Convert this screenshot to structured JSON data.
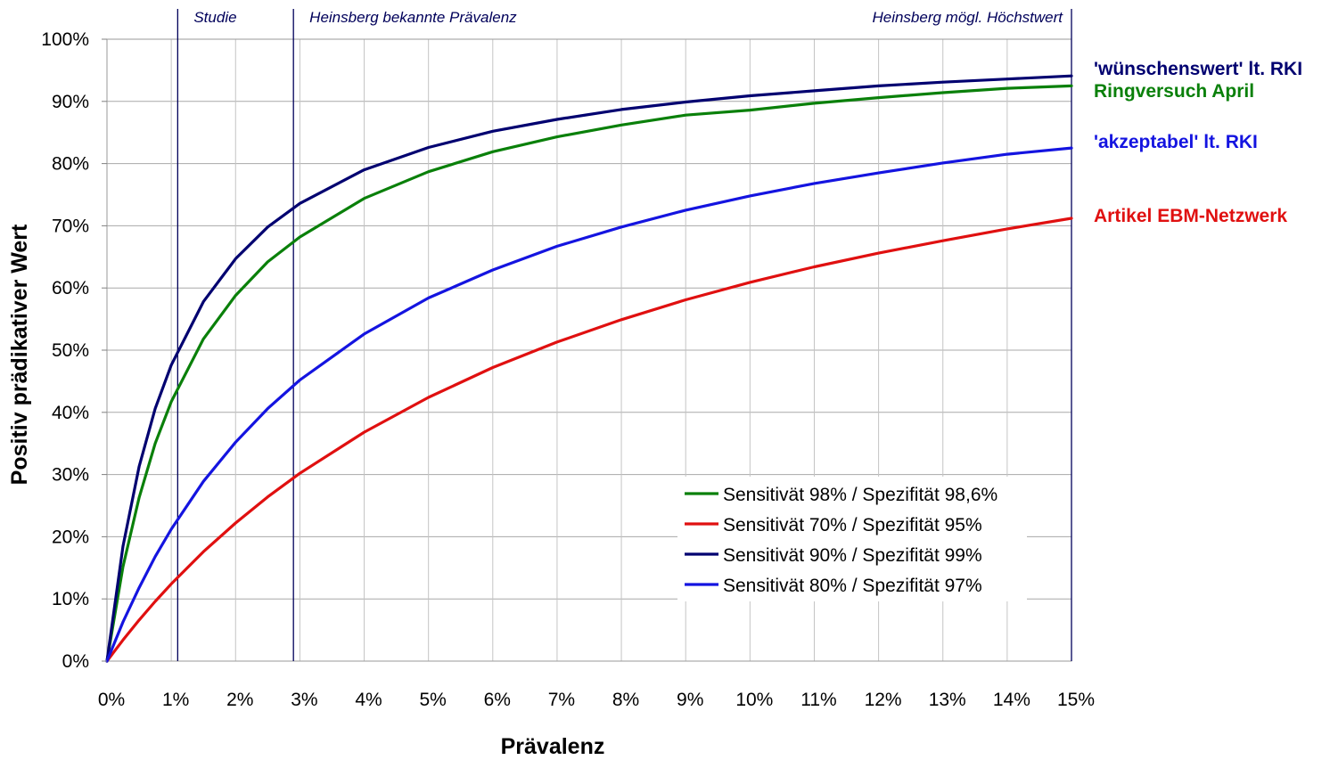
{
  "chart_data": {
    "type": "line",
    "title": "",
    "xlabel": "Prävalenz",
    "ylabel": "Positiv prädikativer Wert",
    "xlim": [
      0,
      15
    ],
    "ylim": [
      0,
      100
    ],
    "x_ticks": [
      "0%",
      "1%",
      "2%",
      "3%",
      "4%",
      "5%",
      "6%",
      "7%",
      "8%",
      "9%",
      "10%",
      "11%",
      "12%",
      "13%",
      "14%",
      "15%"
    ],
    "y_ticks": [
      "0%",
      "10%",
      "20%",
      "30%",
      "40%",
      "50%",
      "60%",
      "70%",
      "80%",
      "90%",
      "100%"
    ],
    "grid": true,
    "legend_position": "bottom-center",
    "x": [
      0,
      0.25,
      0.5,
      0.75,
      1,
      1.5,
      2,
      2.5,
      3,
      4,
      5,
      6,
      7,
      8,
      9,
      10,
      11,
      12,
      13,
      14,
      15
    ],
    "series": [
      {
        "name": "Sensitivät 98% / Spezifität 98,6%",
        "color": "#0a800a",
        "values": [
          0,
          15.2,
          26.3,
          35.0,
          41.7,
          51.8,
          58.8,
          64.2,
          68.2,
          74.4,
          78.7,
          81.9,
          84.3,
          86.2,
          87.8,
          88.6,
          89.7,
          90.6,
          91.4,
          92.1,
          92.5
        ]
      },
      {
        "name": "Sensitivät 70% / Spezifität 95%",
        "color": "#e01010",
        "values": [
          0,
          3.4,
          6.6,
          9.6,
          12.4,
          17.6,
          22.2,
          26.4,
          30.2,
          36.8,
          42.4,
          47.2,
          51.3,
          54.9,
          58.1,
          60.9,
          63.4,
          65.6,
          67.6,
          69.5,
          71.2
        ]
      },
      {
        "name": "Sensitivät 90% / Spezifität 99%",
        "color": "#000070",
        "values": [
          0,
          18.5,
          31.3,
          40.6,
          47.6,
          57.8,
          64.7,
          69.8,
          73.6,
          79.0,
          82.6,
          85.2,
          87.1,
          88.7,
          89.9,
          90.9,
          91.7,
          92.5,
          93.1,
          93.6,
          94.1
        ]
      },
      {
        "name": "Sensitivät 80% / Spezifität 97%",
        "color": "#1414e0",
        "values": [
          0,
          6.3,
          11.8,
          16.8,
          21.2,
          28.9,
          35.2,
          40.6,
          45.2,
          52.6,
          58.4,
          62.9,
          66.7,
          69.8,
          72.5,
          74.8,
          76.8,
          78.5,
          80.1,
          81.5,
          82.5
        ]
      }
    ],
    "end_labels": [
      {
        "text": "'wünschenswert' lt. RKI",
        "color": "#000070",
        "series_index": 2
      },
      {
        "text": "Ringversuch April",
        "color": "#0a800a",
        "series_index": 0
      },
      {
        "text": "'akzeptabel' lt. RKI",
        "color": "#1414e0",
        "series_index": 3
      },
      {
        "text": "Artikel EBM-Netzwerk",
        "color": "#e01010",
        "series_index": 1
      }
    ],
    "reference_lines": [
      {
        "x": 1.1,
        "label": "Studie",
        "color": "#00005a"
      },
      {
        "x": 2.9,
        "label": "Heinsberg bekannte Prävalenz",
        "color": "#00005a"
      },
      {
        "x": 15,
        "label": "Heinsberg mögl. Höchstwert",
        "color": "#00005a"
      }
    ]
  }
}
